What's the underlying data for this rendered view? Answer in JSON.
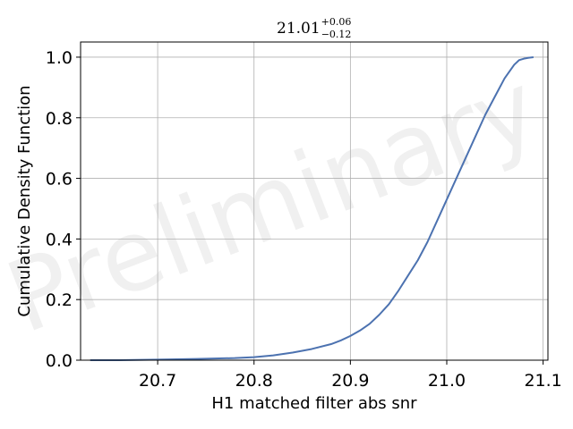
{
  "chart_data": {
    "type": "line",
    "title": {
      "value": "21.01",
      "sup": "+0.06",
      "sub": "−0.12"
    },
    "xlabel": "H1 matched filter abs snr",
    "ylabel": "Cumulative Density Function",
    "xlim": [
      20.62,
      21.105
    ],
    "ylim": [
      0.0,
      1.05
    ],
    "xticks": [
      20.7,
      20.8,
      20.9,
      21.0,
      21.1
    ],
    "xtick_labels": [
      "20.7",
      "20.8",
      "20.9",
      "21.0",
      "21.1"
    ],
    "yticks": [
      0.0,
      0.2,
      0.4,
      0.6,
      0.8,
      1.0
    ],
    "ytick_labels": [
      "0.0",
      "0.2",
      "0.4",
      "0.6",
      "0.8",
      "1.0"
    ],
    "grid": true,
    "watermark": "Preliminary",
    "line_color": "#4c72b0",
    "series": [
      {
        "x": [
          20.63,
          20.66,
          20.7,
          20.74,
          20.78,
          20.8,
          20.82,
          20.84,
          20.86,
          20.88,
          20.89,
          20.9,
          20.91,
          20.92,
          20.93,
          20.94,
          20.95,
          20.96,
          20.97,
          20.98,
          20.99,
          21.0,
          21.01,
          21.02,
          21.03,
          21.04,
          21.05,
          21.06,
          21.07,
          21.075,
          21.08,
          21.085,
          21.09
        ],
        "y": [
          0.0,
          0.0,
          0.002,
          0.004,
          0.007,
          0.01,
          0.016,
          0.025,
          0.037,
          0.053,
          0.065,
          0.08,
          0.098,
          0.12,
          0.15,
          0.185,
          0.23,
          0.28,
          0.33,
          0.39,
          0.46,
          0.53,
          0.6,
          0.67,
          0.74,
          0.81,
          0.87,
          0.93,
          0.975,
          0.99,
          0.995,
          0.998,
          1.0
        ]
      }
    ]
  }
}
